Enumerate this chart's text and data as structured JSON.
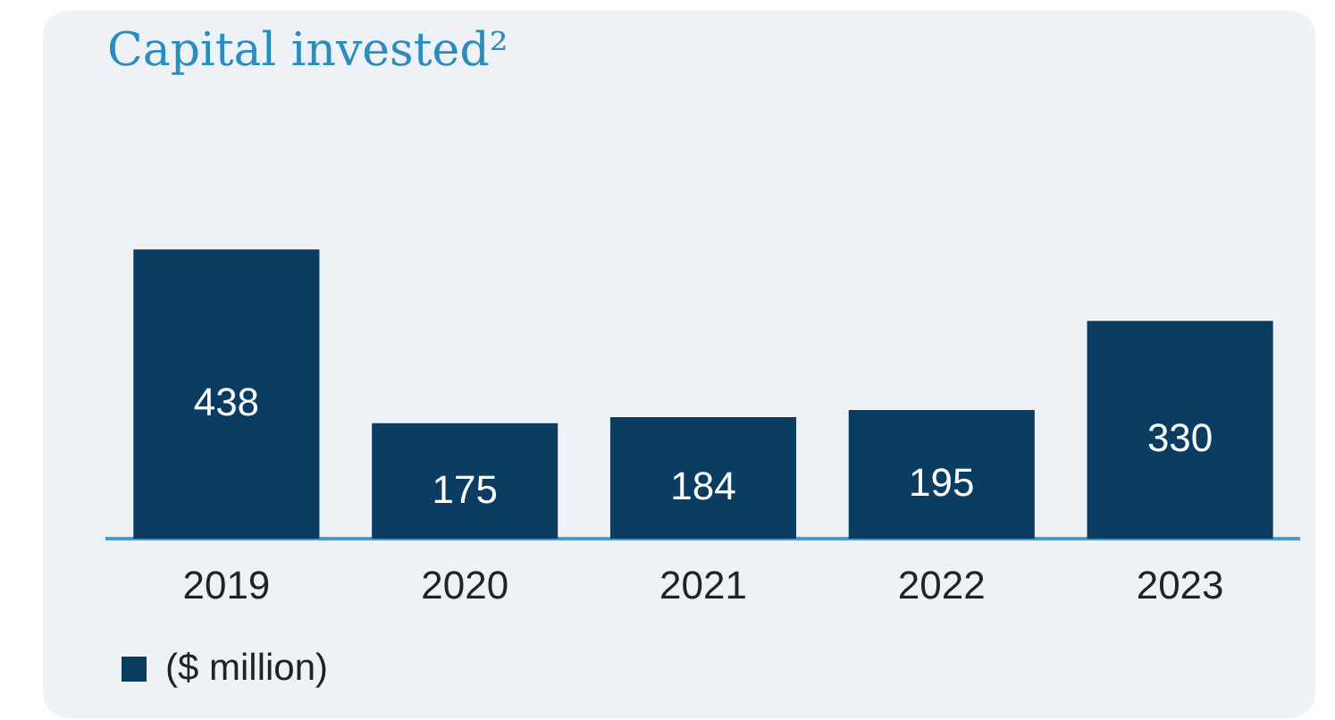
{
  "chart_data": {
    "type": "bar",
    "title": "Capital invested²",
    "categories": [
      "2019",
      "2020",
      "2021",
      "2022",
      "2023"
    ],
    "series": [
      {
        "name": "($ million)",
        "color": "#0b3d63",
        "values": [
          438,
          175,
          184,
          195,
          330
        ]
      }
    ],
    "data_labels": true,
    "grid": false,
    "legend": "bottom left"
  }
}
